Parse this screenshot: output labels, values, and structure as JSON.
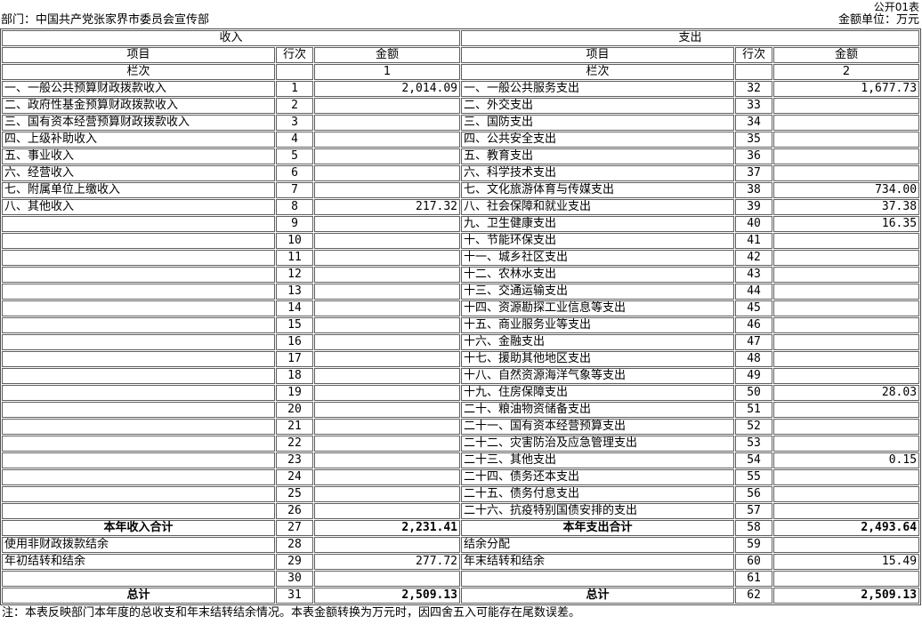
{
  "header": {
    "form_no": "公开01表",
    "department": "部门：中国共产党张家界市委员会宣传部",
    "unit": "金额单位：万元"
  },
  "table": {
    "income_title": "收入",
    "expenditure_title": "支出",
    "columns": {
      "item": "项目",
      "line": "行次",
      "amount": "金额"
    },
    "lanci_label": "栏次",
    "income_col_no": "1",
    "expenditure_col_no": "2",
    "rows": [
      {
        "bold": false,
        "cells": [
          "一、一般公共预算财政拨款收入",
          "1",
          "2,014.09",
          "一、一般公共服务支出",
          "32",
          "1,677.73"
        ]
      },
      {
        "bold": false,
        "cells": [
          "二、政府性基金预算财政拨款收入",
          "2",
          "",
          "二、外交支出",
          "33",
          ""
        ]
      },
      {
        "bold": false,
        "cells": [
          "三、国有资本经营预算财政拨款收入",
          "3",
          "",
          "三、国防支出",
          "34",
          ""
        ]
      },
      {
        "bold": false,
        "cells": [
          "四、上级补助收入",
          "4",
          "",
          "四、公共安全支出",
          "35",
          ""
        ]
      },
      {
        "bold": false,
        "cells": [
          "五、事业收入",
          "5",
          "",
          "五、教育支出",
          "36",
          ""
        ]
      },
      {
        "bold": false,
        "cells": [
          "六、经营收入",
          "6",
          "",
          "六、科学技术支出",
          "37",
          ""
        ]
      },
      {
        "bold": false,
        "cells": [
          "七、附属单位上缴收入",
          "7",
          "",
          "七、文化旅游体育与传媒支出",
          "38",
          "734.00"
        ]
      },
      {
        "bold": false,
        "cells": [
          "八、其他收入",
          "8",
          "217.32",
          "八、社会保障和就业支出",
          "39",
          "37.38"
        ]
      },
      {
        "bold": false,
        "cells": [
          "",
          "9",
          "",
          "九、卫生健康支出",
          "40",
          "16.35"
        ]
      },
      {
        "bold": false,
        "cells": [
          "",
          "10",
          "",
          "十、节能环保支出",
          "41",
          ""
        ]
      },
      {
        "bold": false,
        "cells": [
          "",
          "11",
          "",
          "十一、城乡社区支出",
          "42",
          ""
        ]
      },
      {
        "bold": false,
        "cells": [
          "",
          "12",
          "",
          "十二、农林水支出",
          "43",
          ""
        ]
      },
      {
        "bold": false,
        "cells": [
          "",
          "13",
          "",
          "十三、交通运输支出",
          "44",
          ""
        ]
      },
      {
        "bold": false,
        "cells": [
          "",
          "14",
          "",
          "十四、资源勘探工业信息等支出",
          "45",
          ""
        ]
      },
      {
        "bold": false,
        "cells": [
          "",
          "15",
          "",
          "十五、商业服务业等支出",
          "46",
          ""
        ]
      },
      {
        "bold": false,
        "cells": [
          "",
          "16",
          "",
          "十六、金融支出",
          "47",
          ""
        ]
      },
      {
        "bold": false,
        "cells": [
          "",
          "17",
          "",
          "十七、援助其他地区支出",
          "48",
          ""
        ]
      },
      {
        "bold": false,
        "cells": [
          "",
          "18",
          "",
          "十八、自然资源海洋气象等支出",
          "49",
          ""
        ]
      },
      {
        "bold": false,
        "cells": [
          "",
          "19",
          "",
          "十九、住房保障支出",
          "50",
          "28.03"
        ]
      },
      {
        "bold": false,
        "cells": [
          "",
          "20",
          "",
          "二十、粮油物资储备支出",
          "51",
          ""
        ]
      },
      {
        "bold": false,
        "cells": [
          "",
          "21",
          "",
          "二十一、国有资本经营预算支出",
          "52",
          ""
        ]
      },
      {
        "bold": false,
        "cells": [
          "",
          "22",
          "",
          "二十二、灾害防治及应急管理支出",
          "53",
          ""
        ]
      },
      {
        "bold": false,
        "cells": [
          "",
          "23",
          "",
          "二十三、其他支出",
          "54",
          "0.15"
        ]
      },
      {
        "bold": false,
        "cells": [
          "",
          "24",
          "",
          "二十四、债务还本支出",
          "55",
          ""
        ]
      },
      {
        "bold": false,
        "cells": [
          "",
          "25",
          "",
          "二十五、债务付息支出",
          "56",
          ""
        ]
      },
      {
        "bold": false,
        "cells": [
          "",
          "26",
          "",
          "二十六、抗疫特别国债安排的支出",
          "57",
          ""
        ]
      },
      {
        "bold": true,
        "cells": [
          "本年收入合计",
          "27",
          "2,231.41",
          "本年支出合计",
          "58",
          "2,493.64"
        ]
      },
      {
        "bold": false,
        "cells": [
          "使用非财政拨款结余",
          "28",
          "",
          "结余分配",
          "59",
          ""
        ]
      },
      {
        "bold": false,
        "cells": [
          "年初结转和结余",
          "29",
          "277.72",
          "年末结转和结余",
          "60",
          "15.49"
        ]
      },
      {
        "bold": false,
        "cells": [
          "",
          "30",
          "",
          "",
          "61",
          ""
        ]
      },
      {
        "bold": true,
        "cells": [
          "总计",
          "31",
          "2,509.13",
          "总计",
          "62",
          "2,509.13"
        ]
      }
    ]
  },
  "note": "注：本表反映部门本年度的总收支和年末结转结余情况。本表金额转换为万元时，因四舍五入可能存在尾数误差。"
}
